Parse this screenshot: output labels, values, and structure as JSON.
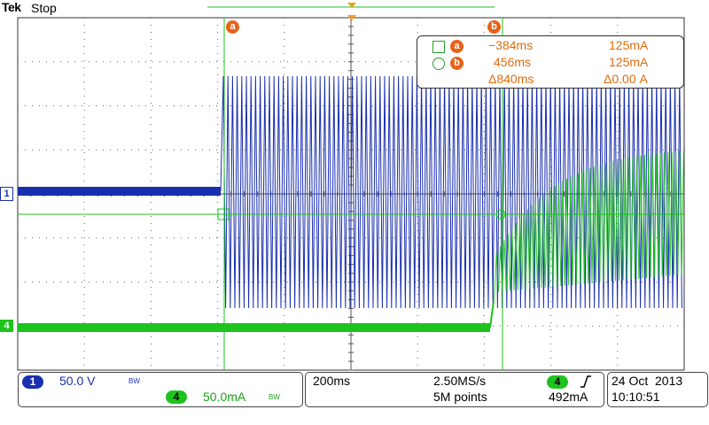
{
  "header": {
    "brand": "Tek",
    "status": "Stop"
  },
  "cursors": {
    "a_label": "a",
    "b_label": "b"
  },
  "channels": {
    "ch1": {
      "marker": "1",
      "color": "#1a2fb0"
    },
    "ch4": {
      "marker": "4",
      "color": "#1ec31e"
    }
  },
  "readout": {
    "row_a": {
      "badge": "a",
      "time": "−384ms",
      "value": "125mA"
    },
    "row_b": {
      "badge": "b",
      "time": "456ms",
      "value": "125mA"
    },
    "delta": {
      "time": "Δ840ms",
      "value": "Δ0.00 A"
    }
  },
  "status_bar": {
    "ch1_number": "1",
    "ch1_scale": "50.0 V",
    "ch1_bw": "BW",
    "ch4_number": "4",
    "ch4_scale": "50.0mA",
    "ch4_bw": "BW",
    "timebase": "200ms",
    "sample_rate": "2.50MS/s",
    "record_length": "5M points",
    "trigger_channel": "4",
    "trigger_slope_icon": "rising-edge-icon",
    "trigger_level": "492mA",
    "date": "24 Oct  2013",
    "time": "10:10:51"
  },
  "colors": {
    "accent": "#e8621a",
    "ch1": "#1a2fb0",
    "ch4": "#1ec31e",
    "grid": "#555555"
  }
}
